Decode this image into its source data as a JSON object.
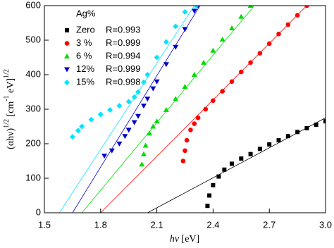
{
  "chart_data": {
    "type": "scatter",
    "xlabel": {
      "parts": [
        "hν",
        " [eV]"
      ]
    },
    "ylabel": {
      "parts": [
        "(αhν)",
        "1/2",
        " [cm",
        "-1",
        " eV]",
        "1/2"
      ]
    },
    "xlim": [
      1.5,
      3.0
    ],
    "ylim": [
      0,
      600
    ],
    "xticks": [
      1.5,
      1.8,
      2.1,
      2.4,
      2.7,
      {
        "value": 3.0,
        "label": "3.0"
      }
    ],
    "yticks": [
      0,
      100,
      200,
      300,
      400,
      500,
      600
    ],
    "legend_title": "Ag%",
    "legend": "upper left",
    "series": [
      {
        "name": "Zero",
        "r_label": "R=0.993",
        "color": "#000000",
        "marker": "square",
        "x": [
          2.37,
          2.38,
          2.4,
          2.43,
          2.46,
          2.5,
          2.55,
          2.6,
          2.65,
          2.7,
          2.75,
          2.8,
          2.85,
          2.9,
          2.95,
          3.0
        ],
        "values": [
          20,
          50,
          80,
          105,
          125,
          142,
          157,
          170,
          185,
          198,
          210,
          222,
          234,
          245,
          255,
          265
        ],
        "fit": {
          "x": [
            2.05,
            3.0
          ],
          "y": [
            0,
            275
          ]
        }
      },
      {
        "name": "3 %",
        "r_label": "R=0.999",
        "color": "#ff0000",
        "marker": "circle",
        "x": [
          2.24,
          2.25,
          2.26,
          2.28,
          2.3,
          2.32,
          2.36,
          2.4,
          2.45,
          2.5,
          2.55,
          2.6,
          2.65,
          2.7,
          2.75,
          2.8,
          2.85,
          2.9
        ],
        "values": [
          150,
          180,
          210,
          240,
          258,
          275,
          300,
          325,
          352,
          380,
          408,
          435,
          462,
          490,
          518,
          545,
          572,
          600
        ],
        "fit": {
          "x": [
            1.8,
            2.9
          ],
          "y": [
            0,
            600
          ]
        }
      },
      {
        "name": "6 %",
        "r_label": "R=0.994",
        "color": "#00dd00",
        "marker": "triangle-up",
        "x": [
          2.02,
          2.03,
          2.04,
          2.06,
          2.08,
          2.1,
          2.15,
          2.2,
          2.25,
          2.3,
          2.35,
          2.4,
          2.45,
          2.5,
          2.55,
          2.6
        ],
        "values": [
          140,
          170,
          195,
          230,
          250,
          265,
          298,
          330,
          365,
          400,
          435,
          470,
          502,
          535,
          568,
          600
        ],
        "fit": {
          "x": [
            1.7,
            2.62
          ],
          "y": [
            0,
            600
          ]
        }
      },
      {
        "name": "12%",
        "r_label": "R=0.999",
        "color": "#0000cc",
        "marker": "triangle-down",
        "x": [
          1.82,
          1.86,
          1.9,
          1.93,
          1.95,
          1.98,
          2.0,
          2.03,
          2.05,
          2.08,
          2.1,
          2.15,
          2.2,
          2.25,
          2.3,
          2.32
        ],
        "values": [
          165,
          180,
          200,
          222,
          240,
          262,
          280,
          310,
          330,
          360,
          380,
          430,
          480,
          532,
          585,
          600
        ],
        "fit": {
          "x": [
            1.65,
            2.33
          ],
          "y": [
            0,
            600
          ]
        }
      },
      {
        "name": "15%",
        "r_label": "R=0.998",
        "color": "#00e5ff",
        "marker": "diamond",
        "x": [
          1.65,
          1.68,
          1.7,
          1.75,
          1.8,
          1.85,
          1.9,
          1.95,
          1.98,
          2.0,
          2.03,
          2.05,
          2.1,
          2.15,
          2.2,
          2.25,
          2.31
        ],
        "values": [
          220,
          238,
          250,
          270,
          285,
          298,
          310,
          322,
          335,
          350,
          378,
          400,
          450,
          495,
          540,
          582,
          600
        ],
        "fit": {
          "x": [
            1.58,
            2.3
          ],
          "y": [
            0,
            600
          ]
        }
      }
    ]
  }
}
